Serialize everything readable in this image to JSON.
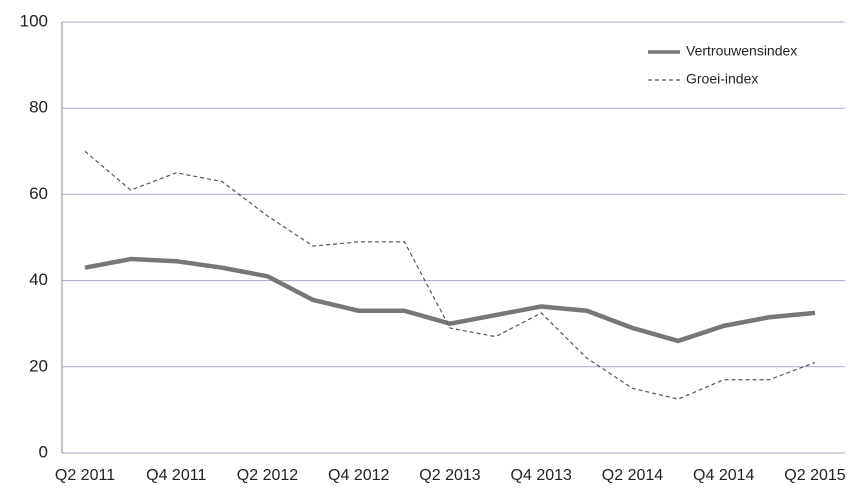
{
  "chart_data": {
    "type": "line",
    "categories": [
      "Q2 2011",
      null,
      "Q4 2011",
      null,
      "Q2 2012",
      null,
      "Q4 2012",
      null,
      "Q2 2013",
      null,
      "Q4 2013",
      null,
      "Q2 2014",
      null,
      "Q4 2014",
      null,
      "Q2 2015"
    ],
    "series": [
      {
        "name": "Vertrouwensindex",
        "color": "#777777",
        "values": [
          43,
          45,
          44.5,
          43,
          41,
          35.5,
          33,
          33,
          30,
          32,
          34,
          33,
          29,
          26,
          29.5,
          31.5,
          32.5
        ]
      },
      {
        "name": "Groei-index",
        "color": "#555555",
        "values": [
          70,
          61,
          65,
          63,
          55,
          48,
          49,
          49,
          29,
          27,
          32.5,
          22,
          15,
          12.5,
          17,
          17,
          21
        ]
      }
    ],
    "ylim": [
      0,
      100
    ],
    "yticks": [
      0,
      20,
      40,
      60,
      80,
      100
    ],
    "grid": true,
    "legend": "upper right"
  }
}
